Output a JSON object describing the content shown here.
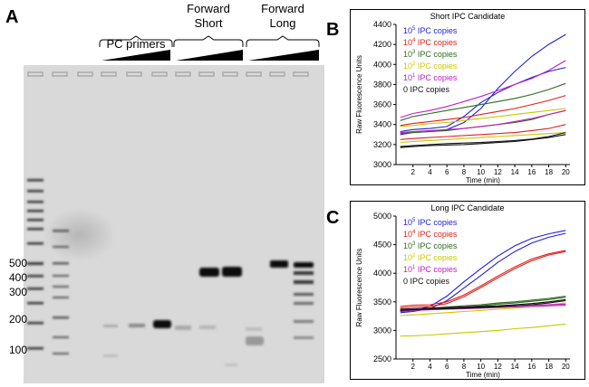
{
  "panels": {
    "a": "A",
    "b": "B",
    "c": "C"
  },
  "gel": {
    "group_headers": [
      {
        "text": "PC primers"
      },
      {
        "line1": "Forward",
        "line2": "Short"
      },
      {
        "line1": "Forward",
        "line2": "Long"
      }
    ],
    "ladder_labels": [
      "500",
      "400",
      "300",
      "200",
      "100"
    ]
  },
  "chart_data": [
    {
      "type": "line",
      "title": "Short IPC Candidate",
      "xlabel": "Time (min)",
      "ylabel": "Raw Fluorescence Units",
      "xlim": [
        0,
        20.5
      ],
      "ylim": [
        3000,
        4400
      ],
      "x_ticks": [
        2,
        4,
        6,
        8,
        10,
        12,
        14,
        16,
        18,
        20
      ],
      "y_ticks": [
        3000,
        3200,
        3400,
        3600,
        3800,
        4000,
        4200,
        4400
      ],
      "legend": [
        {
          "base": "10",
          "exp": "5",
          "label": " IPC copies",
          "color": "#1f1fd6"
        },
        {
          "base": "10",
          "exp": "4",
          "label": " IPC copies",
          "color": "#e0201c"
        },
        {
          "base": "10",
          "exp": "3",
          "label": " IPC copies",
          "color": "#2f6b1f"
        },
        {
          "base": "10",
          "exp": "2",
          "label": " IPC copies",
          "color": "#c8c800"
        },
        {
          "base": "10",
          "exp": "1",
          "label": " IPC copies",
          "color": "#c020c0"
        },
        {
          "base": "0",
          "exp": "",
          "label": " IPC copies",
          "color": "#111111"
        }
      ],
      "x": [
        0.5,
        2,
        4,
        6,
        8,
        10,
        12,
        14,
        16,
        18,
        20
      ],
      "series": [
        {
          "name": "10^5 IPC copies",
          "color": "#1f1fd6",
          "values": [
            3300,
            3320,
            3330,
            3350,
            3420,
            3560,
            3760,
            3930,
            4080,
            4200,
            4300
          ]
        },
        {
          "name": "10^5 IPC copies",
          "color": "#1f1fd6",
          "values": [
            3330,
            3350,
            3360,
            3380,
            3480,
            3620,
            3720,
            3800,
            3870,
            3930,
            3970
          ]
        },
        {
          "name": "10^4 IPC copies",
          "color": "#e0201c",
          "values": [
            3390,
            3410,
            3430,
            3450,
            3470,
            3500,
            3530,
            3560,
            3600,
            3640,
            3690
          ]
        },
        {
          "name": "10^4 IPC copies",
          "color": "#e0201c",
          "values": [
            3250,
            3260,
            3270,
            3280,
            3290,
            3300,
            3310,
            3320,
            3340,
            3360,
            3400
          ]
        },
        {
          "name": "10^3 IPC copies",
          "color": "#2f6b1f",
          "values": [
            3440,
            3480,
            3510,
            3540,
            3570,
            3600,
            3630,
            3660,
            3700,
            3750,
            3810
          ]
        },
        {
          "name": "10^3 IPC copies",
          "color": "#2f6b1f",
          "values": [
            3310,
            3320,
            3330,
            3340,
            3360,
            3380,
            3400,
            3420,
            3450,
            3500,
            3540
          ]
        },
        {
          "name": "10^2 IPC copies",
          "color": "#c8c800",
          "values": [
            3380,
            3390,
            3410,
            3420,
            3440,
            3460,
            3480,
            3500,
            3520,
            3540,
            3560
          ]
        },
        {
          "name": "10^2 IPC copies",
          "color": "#c8c800",
          "values": [
            3220,
            3230,
            3240,
            3250,
            3260,
            3270,
            3280,
            3290,
            3300,
            3310,
            3320
          ]
        },
        {
          "name": "10^1 IPC copies",
          "color": "#c020c0",
          "values": [
            3470,
            3510,
            3540,
            3580,
            3630,
            3680,
            3740,
            3800,
            3860,
            3940,
            4040
          ]
        },
        {
          "name": "10^1 IPC copies",
          "color": "#c020c0",
          "values": [
            3320,
            3330,
            3340,
            3350,
            3360,
            3380,
            3400,
            3430,
            3460,
            3500,
            3540
          ]
        },
        {
          "name": "0 IPC copies",
          "color": "#111111",
          "values": [
            3180,
            3190,
            3200,
            3210,
            3215,
            3220,
            3230,
            3240,
            3255,
            3280,
            3320
          ]
        },
        {
          "name": "0 IPC copies",
          "color": "#111111",
          "values": [
            3170,
            3180,
            3190,
            3195,
            3200,
            3210,
            3220,
            3230,
            3250,
            3270,
            3300
          ]
        }
      ]
    },
    {
      "type": "line",
      "title": "Long IPC Candidate",
      "xlabel": "Time (min)",
      "ylabel": "Raw Fluorescence Units",
      "xlim": [
        0,
        20.5
      ],
      "ylim": [
        2500,
        5000
      ],
      "x_ticks": [
        2,
        4,
        6,
        8,
        10,
        12,
        14,
        16,
        18,
        20
      ],
      "y_ticks": [
        2500,
        3000,
        3500,
        4000,
        4500,
        5000
      ],
      "legend": [
        {
          "base": "10",
          "exp": "5",
          "label": " IPC copies",
          "color": "#1f1fd6"
        },
        {
          "base": "10",
          "exp": "4",
          "label": " IPC copies",
          "color": "#e0201c"
        },
        {
          "base": "10",
          "exp": "3",
          "label": " IPC copies",
          "color": "#2f6b1f"
        },
        {
          "base": "10",
          "exp": "2",
          "label": " IPC copies",
          "color": "#c8c800"
        },
        {
          "base": "10",
          "exp": "1",
          "label": " IPC copies",
          "color": "#c020c0"
        },
        {
          "base": "0",
          "exp": "",
          "label": " IPC copies",
          "color": "#111111"
        }
      ],
      "x": [
        0.5,
        2,
        4,
        6,
        8,
        10,
        12,
        14,
        16,
        18,
        20
      ],
      "series": [
        {
          "name": "10^5 IPC copies",
          "color": "#1f1fd6",
          "values": [
            3330,
            3350,
            3420,
            3600,
            3850,
            4080,
            4300,
            4480,
            4610,
            4690,
            4750
          ]
        },
        {
          "name": "10^5 IPC copies",
          "color": "#1f1fd6",
          "values": [
            3310,
            3330,
            3380,
            3520,
            3740,
            3960,
            4190,
            4380,
            4530,
            4630,
            4700
          ]
        },
        {
          "name": "10^4 IPC copies",
          "color": "#e0201c",
          "values": [
            3420,
            3440,
            3450,
            3500,
            3620,
            3780,
            3950,
            4110,
            4250,
            4340,
            4400
          ]
        },
        {
          "name": "10^4 IPC copies",
          "color": "#e0201c",
          "values": [
            3390,
            3410,
            3420,
            3470,
            3590,
            3750,
            3920,
            4080,
            4220,
            4320,
            4380
          ]
        },
        {
          "name": "10^3 IPC copies",
          "color": "#2f6b1f",
          "values": [
            3350,
            3370,
            3390,
            3410,
            3430,
            3450,
            3480,
            3500,
            3530,
            3560,
            3600
          ]
        },
        {
          "name": "10^3 IPC copies",
          "color": "#2f6b1f",
          "values": [
            3330,
            3350,
            3370,
            3390,
            3410,
            3430,
            3460,
            3480,
            3510,
            3540,
            3580
          ]
        },
        {
          "name": "10^2 IPC copies",
          "color": "#c8c800",
          "values": [
            2900,
            2905,
            2920,
            2940,
            2960,
            2980,
            3000,
            3030,
            3050,
            3080,
            3110
          ]
        },
        {
          "name": "10^2 IPC copies",
          "color": "#c8c800",
          "values": [
            3260,
            3270,
            3290,
            3310,
            3330,
            3350,
            3370,
            3390,
            3420,
            3450,
            3480
          ]
        },
        {
          "name": "10^1 IPC copies",
          "color": "#c020c0",
          "values": [
            3360,
            3370,
            3380,
            3390,
            3400,
            3410,
            3420,
            3430,
            3440,
            3450,
            3460
          ]
        },
        {
          "name": "10^1 IPC copies",
          "color": "#c020c0",
          "values": [
            3340,
            3350,
            3360,
            3370,
            3380,
            3390,
            3400,
            3410,
            3420,
            3430,
            3440
          ]
        },
        {
          "name": "0 IPC copies",
          "color": "#111111",
          "values": [
            3370,
            3380,
            3390,
            3400,
            3410,
            3420,
            3430,
            3450,
            3470,
            3500,
            3540
          ]
        },
        {
          "name": "0 IPC copies",
          "color": "#111111",
          "values": [
            3350,
            3360,
            3370,
            3380,
            3390,
            3400,
            3410,
            3430,
            3450,
            3480,
            3520
          ]
        }
      ]
    }
  ]
}
